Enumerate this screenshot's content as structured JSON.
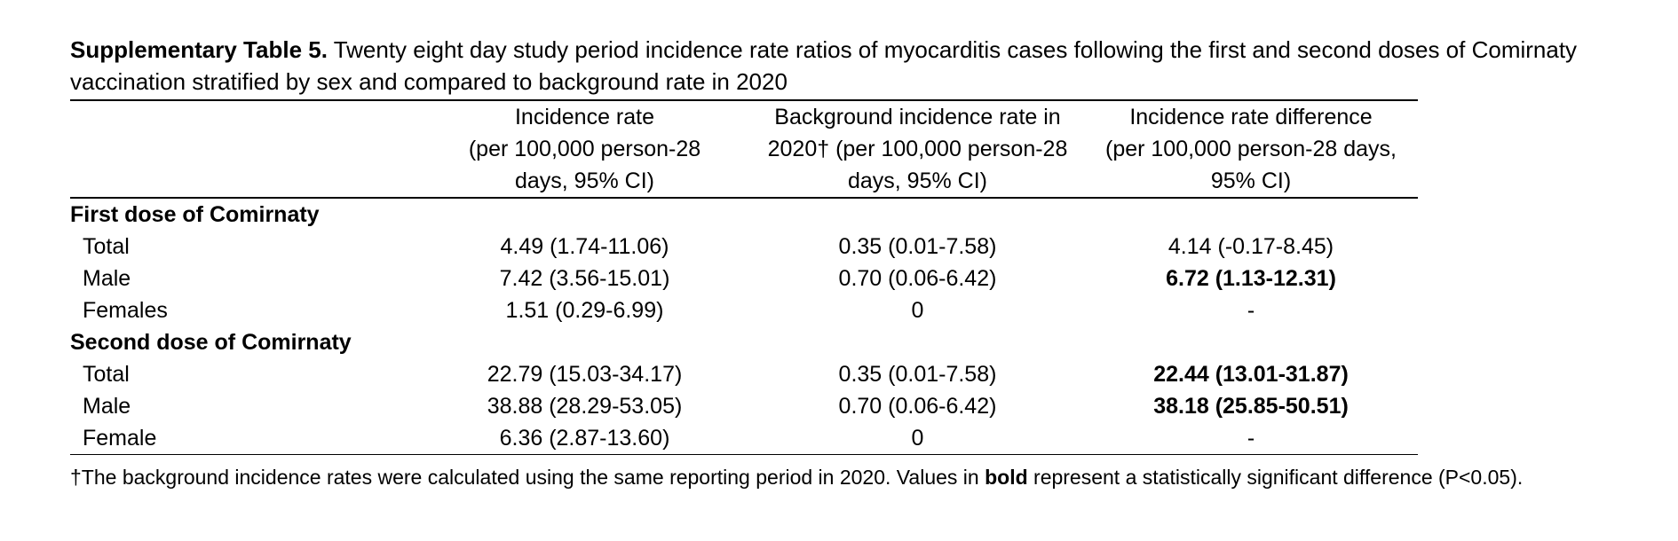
{
  "caption": {
    "label": "Supplementary Table 5.",
    "text": " Twenty eight day study period incidence rate ratios of myocarditis cases following the first and second doses of Comirnaty vaccination stratified by sex and compared to background rate in 2020"
  },
  "table": {
    "headers": [
      {
        "lines": [
          "",
          "",
          ""
        ]
      },
      {
        "lines": [
          "Incidence rate",
          "(per 100,000 person-28",
          "days, 95% CI)"
        ]
      },
      {
        "lines": [
          "Background incidence rate in",
          "2020† (per 100,000 person-28",
          "days, 95% CI)"
        ]
      },
      {
        "lines": [
          "Incidence rate difference",
          "(per 100,000 person-28 days,",
          "95% CI)"
        ]
      }
    ],
    "sections": [
      {
        "title": "First dose of Comirnaty",
        "rows": [
          {
            "label": "Total",
            "incidence": "4.49 (1.74-11.06)",
            "background": "0.35 (0.01-7.58)",
            "difference": "4.14 (-0.17-8.45)",
            "significant": false
          },
          {
            "label": "Male",
            "incidence": "7.42 (3.56-15.01)",
            "background": "0.70 (0.06-6.42)",
            "difference": "6.72 (1.13-12.31)",
            "significant": true
          },
          {
            "label": "Females",
            "incidence": "1.51 (0.29-6.99)",
            "background": "0",
            "difference": "-",
            "significant": false
          }
        ]
      },
      {
        "title": "Second dose of Comirnaty",
        "rows": [
          {
            "label": "Total",
            "incidence": "22.79 (15.03-34.17)",
            "background": "0.35 (0.01-7.58)",
            "difference": "22.44 (13.01-31.87)",
            "significant": true
          },
          {
            "label": "Male",
            "incidence": "38.88 (28.29-53.05)",
            "background": "0.70 (0.06-6.42)",
            "difference": "38.18 (25.85-50.51)",
            "significant": true
          },
          {
            "label": "Female",
            "incidence": "6.36 (2.87-13.60)",
            "background": "0",
            "difference": "-",
            "significant": false
          }
        ]
      }
    ]
  },
  "footnote": {
    "before": "†The background incidence rates were calculated using the same reporting period in 2020. Values in ",
    "bold": "bold",
    "after": " represent a statistically significant difference (P<0.05)."
  }
}
